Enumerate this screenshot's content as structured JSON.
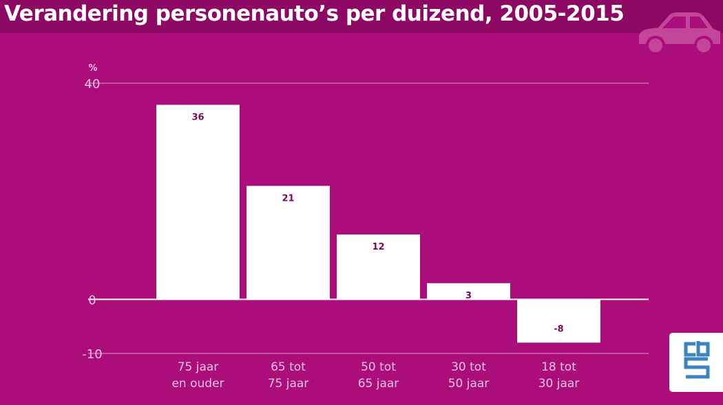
{
  "title": "Verandering personenauto’s per duizend, 2005-2015",
  "colors": {
    "background": "#ab0d7a",
    "title_bar": "#8c0863",
    "bar": "#ffffff",
    "gridline": "#d27bb6",
    "value_label": "#7a0a55",
    "tick_text": "#f0c4e2"
  },
  "icons": [
    "car-icon",
    "cbs-logo"
  ],
  "chart_data": {
    "type": "bar",
    "title": "Verandering personenauto’s per duizend, 2005-2015",
    "ylabel": "%",
    "ylim": [
      -10,
      40
    ],
    "yticks": [
      40,
      0,
      -10
    ],
    "ytick_labels": [
      "40",
      "0",
      "-10"
    ],
    "categories": [
      [
        "75 jaar",
        "en ouder"
      ],
      [
        "65 tot",
        "75 jaar"
      ],
      [
        "50 tot",
        "65 jaar"
      ],
      [
        "30 tot",
        "50 jaar"
      ],
      [
        "18 tot",
        "30 jaar"
      ]
    ],
    "values": [
      36,
      21,
      12,
      3,
      -8
    ],
    "value_labels": [
      "36",
      "21",
      "12",
      "3",
      "-8"
    ],
    "grid": true,
    "legend": "none"
  }
}
